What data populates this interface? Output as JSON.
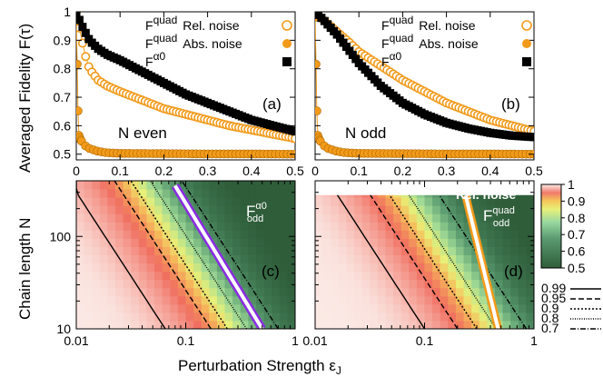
{
  "colors": {
    "orange": "#f29a1a",
    "black": "#000000",
    "purple": "#8a2be2",
    "green_dark": "#2f5d3a"
  },
  "chart_data": [
    {
      "id": "a",
      "type": "line",
      "panel_label": "(a)",
      "annotation": "N even",
      "ylabel": "Averaged Fidelity F(τ)",
      "xlabel": "",
      "xlim": [
        0,
        0.5
      ],
      "ylim": [
        0.48,
        1.0
      ],
      "xticks": [
        "0",
        "0.1",
        "0.2",
        "0.3",
        "0.4",
        "0.5"
      ],
      "yticks": [
        "0.5",
        "0.6",
        "0.7",
        "0.8",
        "0.9",
        "1"
      ],
      "legend": [
        {
          "main": "F",
          "sup": "quad",
          "desc": "Rel. noise",
          "marker": "open-circle"
        },
        {
          "main": "F",
          "sup": "quad",
          "desc": "Abs. noise",
          "marker": "filled-circle"
        },
        {
          "main": "F",
          "sup": "α0",
          "desc": "",
          "marker": "filled-square"
        }
      ],
      "series": [
        {
          "name": "Fquad Rel. noise",
          "marker": "open-circle",
          "x": [
            0.0,
            0.01,
            0.02,
            0.03,
            0.05,
            0.07,
            0.1,
            0.15,
            0.2,
            0.25,
            0.3,
            0.35,
            0.4,
            0.45,
            0.5
          ],
          "y": [
            1.0,
            0.92,
            0.85,
            0.8,
            0.76,
            0.74,
            0.72,
            0.69,
            0.66,
            0.64,
            0.62,
            0.6,
            0.585,
            0.57,
            0.555
          ]
        },
        {
          "name": "Fquad Abs. noise",
          "marker": "filled-circle",
          "x": [
            0.0,
            0.005,
            0.01,
            0.02,
            0.03,
            0.05,
            0.07,
            0.1,
            0.2,
            0.3,
            0.4,
            0.5
          ],
          "y": [
            0.98,
            0.57,
            0.55,
            0.53,
            0.52,
            0.51,
            0.505,
            0.503,
            0.502,
            0.501,
            0.501,
            0.5
          ]
        },
        {
          "name": "Fα0",
          "marker": "filled-square",
          "x": [
            0.0,
            0.01,
            0.02,
            0.03,
            0.05,
            0.07,
            0.1,
            0.15,
            0.2,
            0.25,
            0.3,
            0.35,
            0.4,
            0.45,
            0.5
          ],
          "y": [
            1.0,
            0.96,
            0.93,
            0.9,
            0.87,
            0.85,
            0.83,
            0.79,
            0.75,
            0.71,
            0.68,
            0.65,
            0.62,
            0.6,
            0.58
          ]
        }
      ]
    },
    {
      "id": "b",
      "type": "line",
      "panel_label": "(b)",
      "annotation": "N odd",
      "xlim": [
        0,
        0.5
      ],
      "ylim": [
        0.48,
        1.0
      ],
      "xticks": [
        "0",
        "0.1",
        "0.2",
        "0.3",
        "0.4",
        "0.5"
      ],
      "legend": [
        {
          "main": "F",
          "sup": "quad",
          "desc": "Rel. noise",
          "marker": "open-circle"
        },
        {
          "main": "F",
          "sup": "quad",
          "desc": "Abs. noise",
          "marker": "filled-circle"
        },
        {
          "main": "F",
          "sup": "α0",
          "desc": "",
          "marker": "filled-square"
        }
      ],
      "series": [
        {
          "name": "Fquad Rel. noise",
          "marker": "open-circle",
          "x": [
            0.0,
            0.02,
            0.05,
            0.08,
            0.1,
            0.15,
            0.2,
            0.25,
            0.3,
            0.35,
            0.4,
            0.45,
            0.5
          ],
          "y": [
            1.0,
            0.97,
            0.93,
            0.89,
            0.86,
            0.81,
            0.76,
            0.72,
            0.68,
            0.65,
            0.62,
            0.6,
            0.58
          ]
        },
        {
          "name": "Fquad Abs. noise",
          "marker": "filled-circle",
          "x": [
            0.0,
            0.005,
            0.01,
            0.02,
            0.03,
            0.05,
            0.07,
            0.1,
            0.2,
            0.3,
            0.4,
            0.5
          ],
          "y": [
            0.98,
            0.57,
            0.55,
            0.53,
            0.52,
            0.51,
            0.505,
            0.503,
            0.502,
            0.501,
            0.501,
            0.5
          ]
        },
        {
          "name": "Fα0",
          "marker": "filled-square",
          "x": [
            0.0,
            0.02,
            0.05,
            0.08,
            0.1,
            0.15,
            0.2,
            0.25,
            0.3,
            0.35,
            0.4,
            0.45,
            0.5
          ],
          "y": [
            1.0,
            0.97,
            0.92,
            0.86,
            0.82,
            0.74,
            0.68,
            0.64,
            0.61,
            0.59,
            0.575,
            0.565,
            0.56
          ]
        }
      ]
    },
    {
      "id": "c",
      "type": "heatmap",
      "panel_label": "(c)",
      "title_main": "F",
      "title_sup": "α0",
      "title_sub": "odd",
      "ylabel": "Chain length N",
      "xscale": "log",
      "yscale": "log",
      "xlim": [
        0.01,
        1
      ],
      "ylim": [
        10,
        400
      ],
      "xticks": [
        "0.01",
        "0.1",
        "1"
      ],
      "yticks": [
        "10",
        "100"
      ],
      "contours": [
        {
          "level": "0.99",
          "x_at_N10": 0.065
        },
        {
          "level": "0.95",
          "x_at_N10": 0.17
        },
        {
          "level": "0.9",
          "x_at_N10": 0.24
        },
        {
          "level": "0.8",
          "x_at_N10": 0.36
        },
        {
          "level": "0.7",
          "x_at_N10": 0.7
        }
      ],
      "highlight": {
        "color": "purple",
        "x_at_N10": 0.5,
        "x_at_Nmax": 0.075
      }
    },
    {
      "id": "d",
      "type": "heatmap",
      "panel_label": "(d)",
      "title_main": "F",
      "title_sup": "quad",
      "title_sub": "odd",
      "note": "Rel. noise",
      "xscale": "log",
      "yscale": "log",
      "xlim": [
        0.01,
        1
      ],
      "ylim": [
        10,
        400
      ],
      "xticks": [
        "0.01",
        "0.1",
        "1"
      ],
      "contours": [
        {
          "level": "0.99",
          "x_at_N10": 0.1
        },
        {
          "level": "0.95",
          "x_at_N10": 0.2
        },
        {
          "level": "0.9",
          "x_at_N10": 0.3
        },
        {
          "level": "0.8",
          "x_at_N10": 0.45
        },
        {
          "level": "0.7",
          "x_at_N10": 0.85
        }
      ],
      "highlight": {
        "color": "orange",
        "x_at_N10": 0.47,
        "x_at_Nmax": 0.22
      }
    }
  ],
  "xlabel_shared": "Perturbation Strength ε",
  "xlabel_sub": "J",
  "colorbar": {
    "ticks": [
      "1",
      "0.9",
      "0.8",
      "0.7",
      "0.6",
      "0.5"
    ],
    "range": [
      0.5,
      1.0
    ]
  },
  "contour_legend": [
    "0.99",
    "0.95",
    "0.9",
    "0.8",
    "0.7"
  ]
}
